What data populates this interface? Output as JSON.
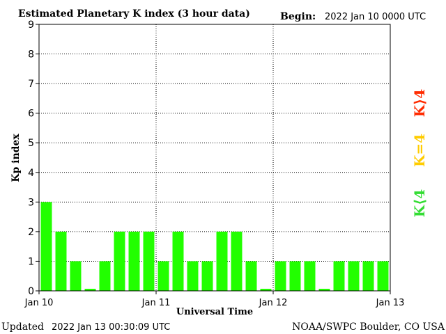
{
  "header": {
    "begin_label": "Begin:",
    "begin_value": "2022 Jan 10 0000 UTC"
  },
  "footer": {
    "updated_label": "Updated",
    "updated_value": "2022 Jan 13 00:30:09 UTC",
    "credit": "NOAA/SWPC Boulder, CO USA"
  },
  "legend": {
    "items": [
      {
        "label": "K⟩4",
        "color": "#ff2b00"
      },
      {
        "label": "K=4",
        "color": "#ffcc00"
      },
      {
        "label": "K⟨4",
        "color": "#33dd33"
      }
    ]
  },
  "colors": {
    "bar": "#22ff00",
    "axis": "#000000",
    "grid": "#000000"
  },
  "chart_data": {
    "type": "bar",
    "title": "Estimated Planetary K index (3 hour data)",
    "xlabel": "Universal Time",
    "ylabel": "Kp index",
    "ylim": [
      0,
      9
    ],
    "y_ticks": [
      "0",
      "1",
      "2",
      "3",
      "4",
      "5",
      "6",
      "7",
      "8",
      "9"
    ],
    "x_ticks": [
      "Jan 10",
      "Jan 11",
      "Jan 12",
      "Jan 13"
    ],
    "grid": true,
    "values": [
      3,
      2,
      1,
      0,
      1,
      2,
      2,
      2,
      1,
      2,
      1,
      1,
      2,
      2,
      1,
      0,
      1,
      1,
      1,
      0,
      1,
      1,
      1,
      1
    ]
  }
}
